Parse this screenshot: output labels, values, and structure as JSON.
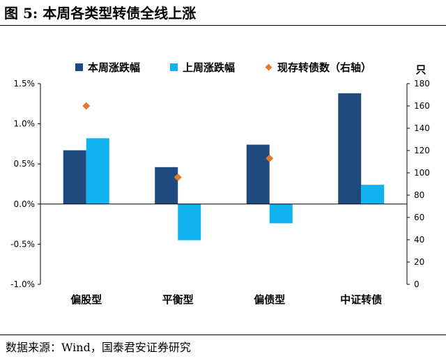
{
  "figure": {
    "title": "图 5:  本周各类型转债全线上涨",
    "source": "数据来源：Wind，国泰君安证券研究"
  },
  "chart_data": {
    "type": "bar",
    "categories": [
      "偏股型",
      "平衡型",
      "偏债型",
      "中证转债"
    ],
    "series": [
      {
        "name": "本周涨跌幅",
        "axis": "left",
        "unit": "%",
        "color": "#1F4A7E",
        "values": [
          0.67,
          0.46,
          0.74,
          1.38
        ]
      },
      {
        "name": "上周涨跌幅",
        "axis": "left",
        "unit": "%",
        "color": "#10B2F0",
        "values": [
          0.82,
          -0.45,
          -0.24,
          0.24
        ]
      },
      {
        "name": "现存转债数（右轴）",
        "axis": "right",
        "marker": "diamond",
        "color": "#E27A2E",
        "values": [
          160,
          96,
          113,
          null
        ]
      }
    ],
    "left_axis": {
      "ylim": [
        -1.0,
        1.5
      ],
      "ticks": [
        "-1.0%",
        "-0.5%",
        "0.0%",
        "0.5%",
        "1.0%",
        "1.5%"
      ],
      "tick_values": [
        -1.0,
        -0.5,
        0.0,
        0.5,
        1.0,
        1.5
      ]
    },
    "right_axis": {
      "ylim": [
        0,
        180
      ],
      "unit_label": "只",
      "ticks": [
        "0",
        "20",
        "40",
        "60",
        "80",
        "100",
        "120",
        "140",
        "160",
        "180"
      ],
      "tick_values": [
        0,
        20,
        40,
        60,
        80,
        100,
        120,
        140,
        160,
        180
      ]
    },
    "legend_position": "top",
    "grid": false
  }
}
